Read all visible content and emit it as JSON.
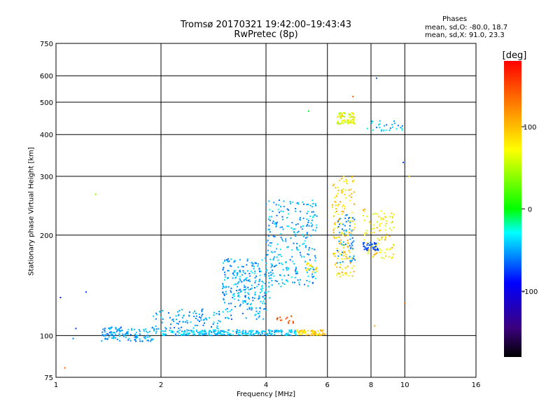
{
  "title": "Tromsø 20170321 19:42:00–19:43:43",
  "subtitle": "RwPretec (8p)",
  "phase_header": "Phases",
  "stats": [
    "mean, sd,O: -80.0, 18.7",
    "mean, sd,X:  91.0, 23.3"
  ],
  "colorbar": {
    "unit": "[deg]",
    "ticks": [
      100,
      0,
      -100
    ],
    "range": [
      -180,
      180
    ]
  },
  "chart_data": {
    "type": "scatter",
    "xlabel": "Frequency [MHz]",
    "ylabel": "Stationary phase Virtual Height [km]",
    "xscale": "log",
    "yscale": "log",
    "xlim": [
      1,
      16
    ],
    "ylim": [
      75,
      750
    ],
    "xticks": [
      1,
      2,
      4,
      6,
      8,
      10,
      16
    ],
    "yticks": [
      75,
      100,
      200,
      300,
      400,
      500,
      600,
      750
    ],
    "grid": true,
    "color_by": "phase (deg)",
    "clusters": [
      {
        "x": [
          1.35,
          1.95
        ],
        "y": [
          96,
          106
        ],
        "n": 130,
        "phase": [
          -110,
          -70
        ]
      },
      {
        "x": [
          2.0,
          4.9
        ],
        "y": [
          100,
          104
        ],
        "n": 260,
        "phase": [
          -100,
          -60
        ]
      },
      {
        "x": [
          4.9,
          5.9
        ],
        "y": [
          100,
          104
        ],
        "n": 60,
        "phase": [
          100,
          130
        ]
      },
      {
        "x": [
          1.9,
          3.0
        ],
        "y": [
          104,
          120
        ],
        "n": 90,
        "phase": [
          -110,
          -70
        ]
      },
      {
        "x": [
          3.0,
          4.0
        ],
        "y": [
          112,
          170
        ],
        "n": 210,
        "phase": [
          -115,
          -65
        ]
      },
      {
        "x": [
          3.2,
          4.2
        ],
        "y": [
          128,
          175
        ],
        "n": 60,
        "phase": [
          -90,
          -60
        ]
      },
      {
        "x": [
          4.0,
          5.6
        ],
        "y": [
          140,
          255
        ],
        "n": 260,
        "phase": [
          -110,
          -60
        ]
      },
      {
        "x": [
          4.3,
          4.8
        ],
        "y": [
          108,
          115
        ],
        "n": 16,
        "phase": [
          150,
          165
        ]
      },
      {
        "x": [
          5.2,
          5.6
        ],
        "y": [
          155,
          165
        ],
        "n": 20,
        "phase": [
          105,
          120
        ]
      },
      {
        "x": [
          6.2,
          7.2
        ],
        "y": [
          150,
          300
        ],
        "n": 160,
        "phase": [
          90,
          135
        ]
      },
      {
        "x": [
          6.4,
          7.2
        ],
        "y": [
          165,
          230
        ],
        "n": 60,
        "phase": [
          -110,
          -80
        ]
      },
      {
        "x": [
          7.6,
          9.3
        ],
        "y": [
          170,
          240
        ],
        "n": 100,
        "phase": [
          80,
          130
        ]
      },
      {
        "x": [
          7.6,
          8.4
        ],
        "y": [
          180,
          190
        ],
        "n": 40,
        "phase": [
          -125,
          -110
        ]
      },
      {
        "x": [
          6.4,
          7.2
        ],
        "y": [
          430,
          465
        ],
        "n": 70,
        "phase": [
          60,
          120
        ]
      },
      {
        "x": [
          7.8,
          9.9
        ],
        "y": [
          410,
          440
        ],
        "n": 28,
        "phase": [
          -110,
          -40
        ]
      }
    ],
    "outliers": [
      {
        "x": 1.03,
        "y": 130,
        "phase": -130
      },
      {
        "x": 1.12,
        "y": 98,
        "phase": -100
      },
      {
        "x": 1.14,
        "y": 105,
        "phase": -120
      },
      {
        "x": 1.22,
        "y": 135,
        "phase": -120
      },
      {
        "x": 1.3,
        "y": 265,
        "phase": 60
      },
      {
        "x": 1.06,
        "y": 80,
        "phase": 150
      },
      {
        "x": 8.3,
        "y": 590,
        "phase": -110
      },
      {
        "x": 7.1,
        "y": 520,
        "phase": 150
      },
      {
        "x": 5.3,
        "y": 470,
        "phase": 10
      },
      {
        "x": 9.9,
        "y": 330,
        "phase": -120
      },
      {
        "x": 10.0,
        "y": 125,
        "phase": 150
      },
      {
        "x": 8.2,
        "y": 107,
        "phase": 130
      },
      {
        "x": 10.3,
        "y": 300,
        "phase": 110
      }
    ]
  }
}
